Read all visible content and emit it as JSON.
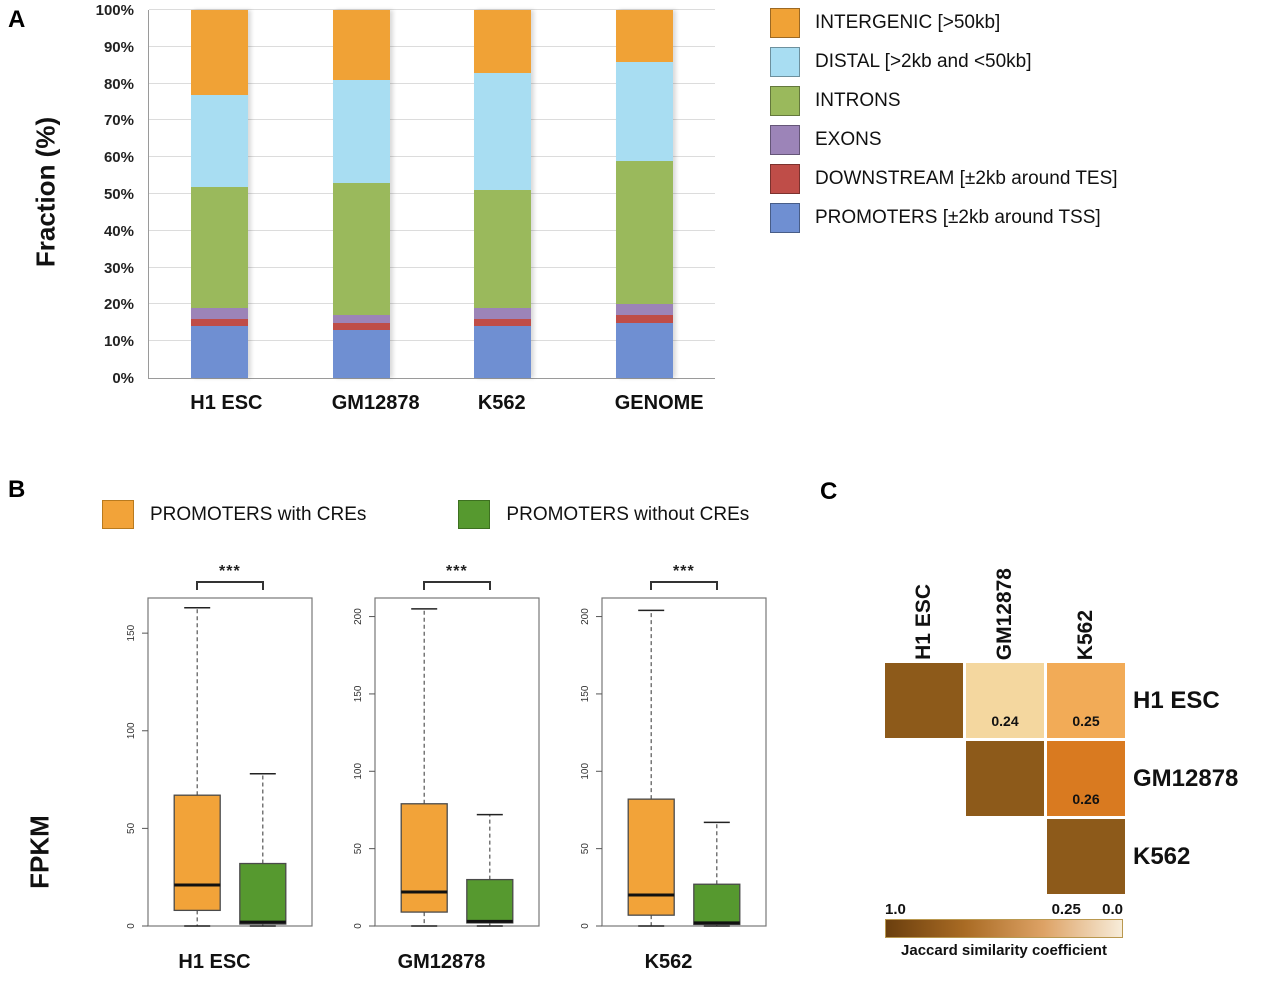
{
  "figure": {
    "panel_a_label": "A",
    "panel_b_label": "B",
    "panel_c_label": "C"
  },
  "chart_data": [
    {
      "type": "bar",
      "stacked": true,
      "panel": "A",
      "ylabel": "Fraction (%)",
      "ylim": [
        0,
        100
      ],
      "ytick_step": 10,
      "ytick_suffix": "%",
      "grid": true,
      "categories": [
        "H1 ESC",
        "GM12878",
        "K562",
        "GENOME"
      ],
      "series_bottom_to_top": [
        {
          "name": "PROMOTERS [±2kb around TSS]",
          "color": "#6f8fd2",
          "values": [
            14,
            13,
            14,
            15
          ]
        },
        {
          "name": "DOWNSTREAM [±2kb around TES]",
          "color": "#bf4d48",
          "values": [
            2,
            2,
            2,
            2
          ]
        },
        {
          "name": "EXONS",
          "color": "#9c84b8",
          "values": [
            3,
            2,
            3,
            3
          ]
        },
        {
          "name": "INTRONS",
          "color": "#9ab95c",
          "values": [
            33,
            36,
            32,
            39
          ]
        },
        {
          "name": "DISTAL [>2kb and <50kb]",
          "color": "#a8ddf2",
          "values": [
            25,
            28,
            32,
            27
          ]
        },
        {
          "name": "INTERGENIC [>50kb]",
          "color": "#f0a236",
          "values": [
            23,
            19,
            17,
            14
          ]
        }
      ],
      "legend_top_to_bottom": [
        "INTERGENIC [>50kb]",
        "DISTAL [>2kb and <50kb]",
        "INTRONS",
        "EXONS",
        "DOWNSTREAM [±2kb around TES]",
        "PROMOTERS [±2kb around TSS]"
      ]
    },
    {
      "type": "boxplot",
      "panel": "B",
      "ylabel": "FPKM",
      "legend": [
        {
          "label": "PROMOTERS with CREs",
          "color": "#f2a339",
          "border": "#b97a1e"
        },
        {
          "label": "PROMOTERS without CREs",
          "color": "#56992f",
          "border": "#3d7020"
        }
      ],
      "groups": [
        {
          "name": "H1 ESC",
          "ylim": [
            0,
            168
          ],
          "yticks": [
            0,
            50,
            100,
            150
          ],
          "significance": "***",
          "boxes": [
            {
              "name": "PROMOTERS with CREs",
              "color": "#f2a339",
              "whisker_low": 0,
              "q1": 8,
              "median": 21,
              "q3": 67,
              "whisker_high": 163
            },
            {
              "name": "PROMOTERS without CREs",
              "color": "#56992f",
              "whisker_low": 0,
              "q1": 1,
              "median": 2,
              "q3": 32,
              "whisker_high": 78
            }
          ]
        },
        {
          "name": "GM12878",
          "ylim": [
            0,
            212
          ],
          "yticks": [
            0,
            50,
            100,
            150,
            200
          ],
          "significance": "***",
          "boxes": [
            {
              "name": "PROMOTERS with CREs",
              "color": "#f2a339",
              "whisker_low": 0,
              "q1": 9,
              "median": 22,
              "q3": 79,
              "whisker_high": 205
            },
            {
              "name": "PROMOTERS without CREs",
              "color": "#56992f",
              "whisker_low": 0,
              "q1": 2,
              "median": 3,
              "q3": 30,
              "whisker_high": 72
            }
          ]
        },
        {
          "name": "K562",
          "ylim": [
            0,
            212
          ],
          "yticks": [
            0,
            50,
            100,
            150,
            200
          ],
          "significance": "***",
          "boxes": [
            {
              "name": "PROMOTERS with CREs",
              "color": "#f2a339",
              "whisker_low": 0,
              "q1": 7,
              "median": 20,
              "q3": 82,
              "whisker_high": 204
            },
            {
              "name": "PROMOTERS without CREs",
              "color": "#56992f",
              "whisker_low": 0,
              "q1": 1,
              "median": 2,
              "q3": 27,
              "whisker_high": 67
            }
          ]
        }
      ]
    },
    {
      "type": "heatmap",
      "panel": "C",
      "col_labels": [
        "H1 ESC",
        "GM12878",
        "K562"
      ],
      "row_labels": [
        "H1 ESC",
        "GM12878",
        "K562"
      ],
      "cells": [
        {
          "row": 0,
          "col": 0,
          "value": 1.0,
          "label": "",
          "color": "#8d5a1a"
        },
        {
          "row": 0,
          "col": 1,
          "value": 0.24,
          "label": "0.24",
          "color": "#f4d79f"
        },
        {
          "row": 0,
          "col": 2,
          "value": 0.25,
          "label": "0.25",
          "color": "#f2ab57"
        },
        {
          "row": 1,
          "col": 1,
          "value": 1.0,
          "label": "",
          "color": "#8d5a1a"
        },
        {
          "row": 1,
          "col": 2,
          "value": 0.26,
          "label": "0.26",
          "color": "#d97a20"
        },
        {
          "row": 2,
          "col": 2,
          "value": 1.0,
          "label": "",
          "color": "#8d5a1a"
        }
      ],
      "colorbar": {
        "left_label": "1.0",
        "mid_label": "0.25",
        "right_label": "0.0",
        "caption": "Jaccard similarity coefficient",
        "gradient": [
          "#6b3f0e",
          "#a96b24",
          "#dda265",
          "#f7ecd9"
        ]
      }
    }
  ]
}
